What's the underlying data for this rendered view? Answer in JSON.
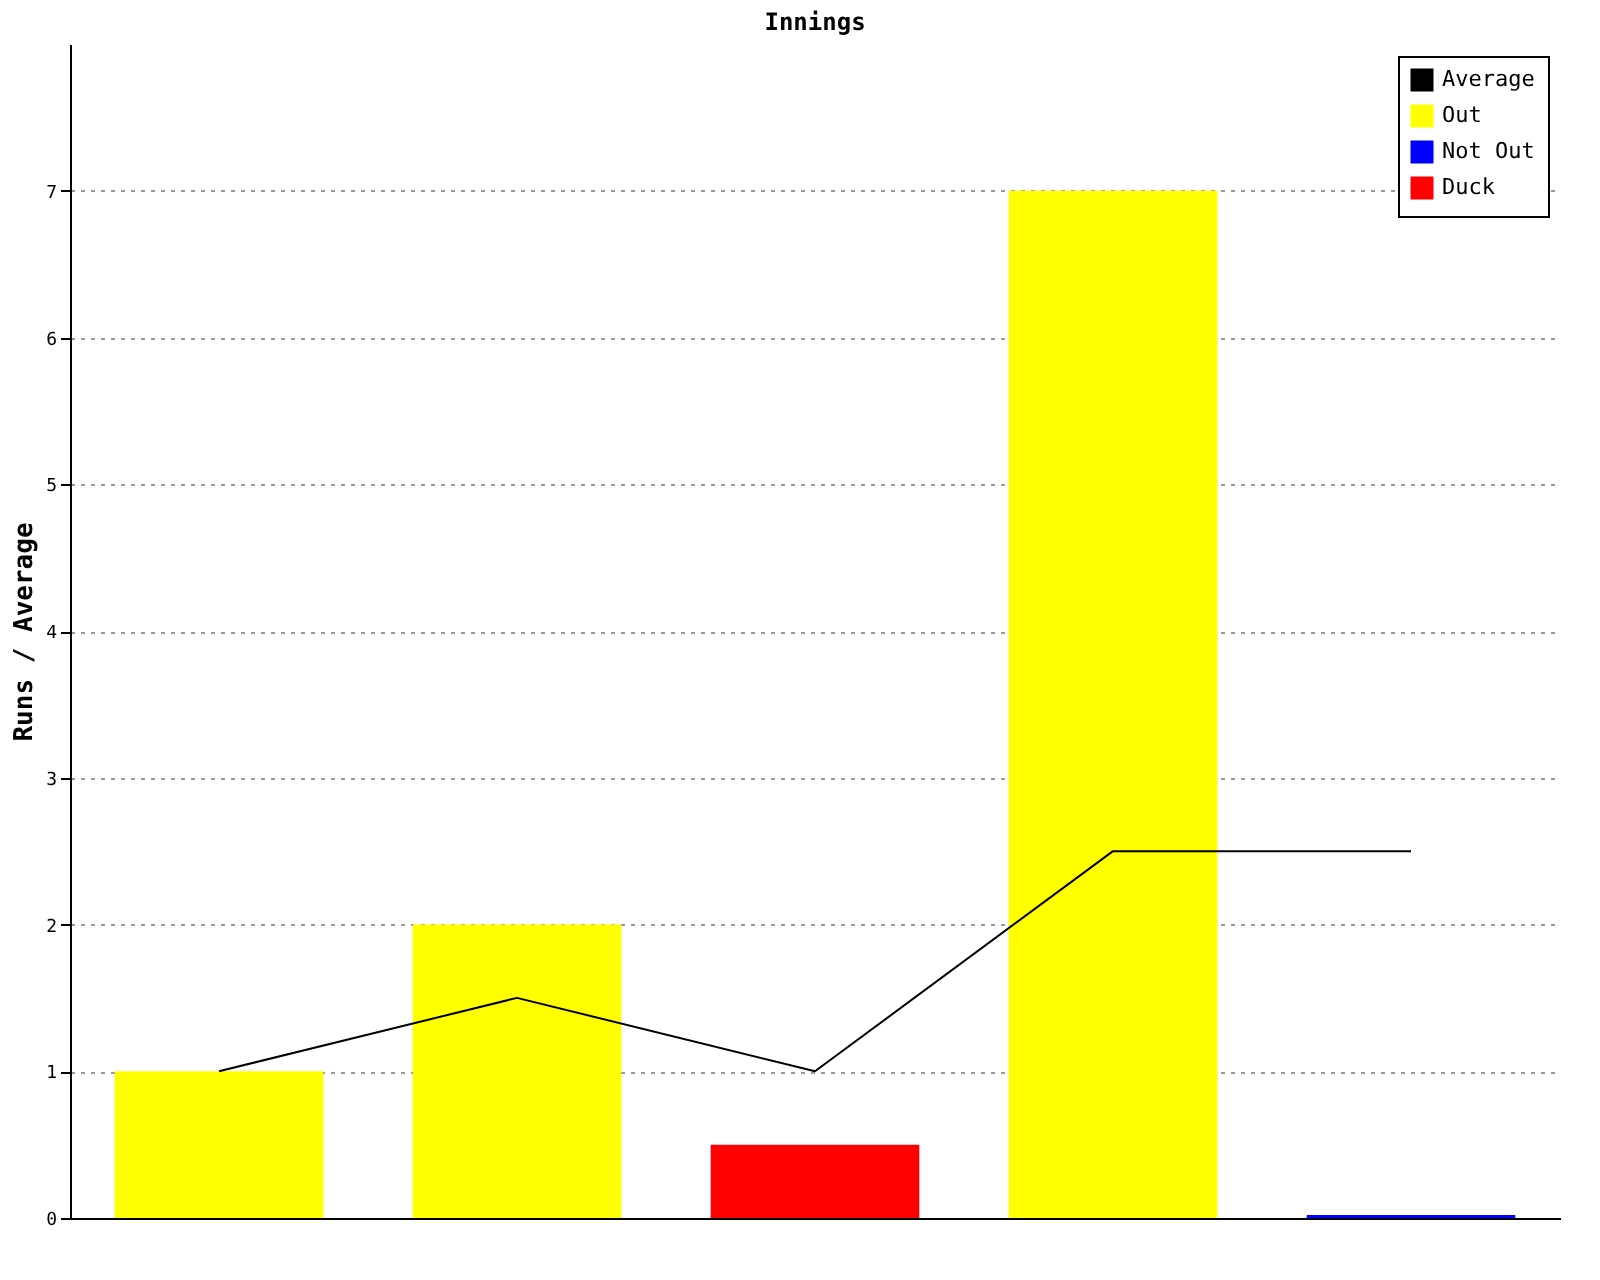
{
  "chart_data": {
    "type": "bar",
    "title": "Innings",
    "ylabel": "Runs / Average",
    "categories": [
      null,
      null,
      null,
      null,
      null
    ],
    "series": [
      {
        "name": "Average",
        "type": "line",
        "color": "#000000",
        "values": [
          1,
          1.5,
          1,
          2.5,
          2.5
        ]
      },
      {
        "name": "Out",
        "color": "#ffff00",
        "values": [
          1,
          2,
          null,
          7,
          null
        ]
      },
      {
        "name": "Not Out",
        "color": "#0000ff",
        "values": [
          null,
          null,
          null,
          null,
          0.02
        ]
      },
      {
        "name": "Duck",
        "color": "#ff0000",
        "values": [
          null,
          null,
          0.5,
          null,
          null
        ]
      }
    ],
    "ylim": [
      0,
      8
    ],
    "yticks": [
      0,
      1,
      2,
      3,
      4,
      5,
      6,
      7
    ],
    "grid": "y",
    "legend": "top right"
  }
}
